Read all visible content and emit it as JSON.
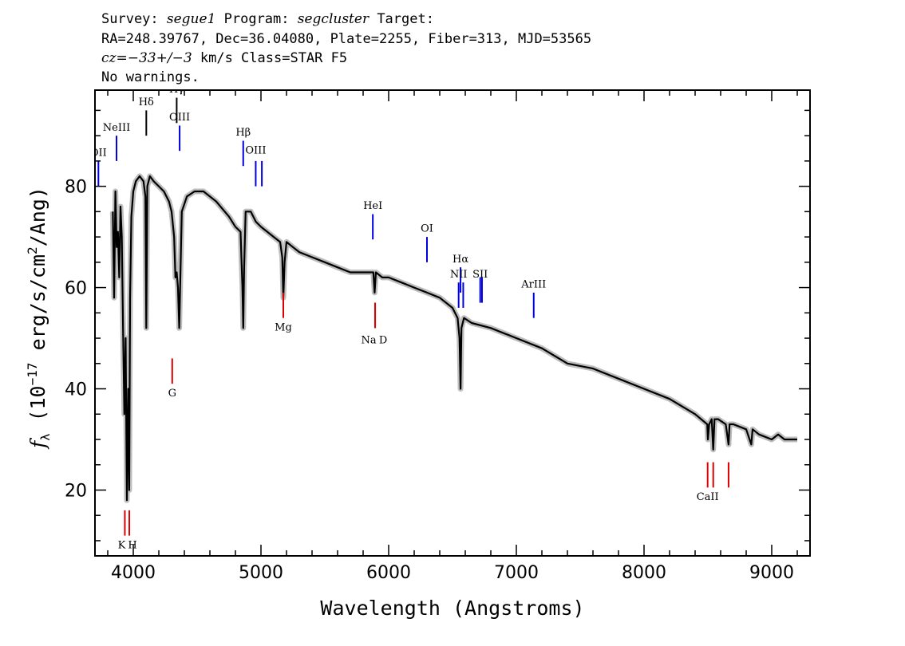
{
  "header": {
    "line1_prefix": "Survey: ",
    "survey": "segue1",
    "line1_mid": " Program: ",
    "program": "segcluster",
    "line1_suffix": " Target:",
    "line2": "RA=248.39767, Dec=36.04080, Plate=2255, Fiber=313, MJD=53565",
    "line3_cz": "cz=−33+/−3",
    "line3_rest": " km/s Class=STAR F5",
    "line4": "No warnings."
  },
  "chart_data": {
    "type": "line",
    "xlabel": "Wavelength (Angstroms)",
    "ylabel": "fλ (10⁻¹⁷ erg/s/cm²/Ang)",
    "ylabel_main": "f",
    "ylabel_sub": "λ",
    "ylabel_rest_a": " (10",
    "ylabel_exp1": "−17",
    "ylabel_rest_b": " erg/s/cm",
    "ylabel_exp2": "2",
    "ylabel_rest_c": "/Ang)",
    "xlim": [
      3700,
      9300
    ],
    "ylim": [
      7,
      99
    ],
    "xticks": [
      4000,
      5000,
      6000,
      7000,
      8000,
      9000
    ],
    "yticks": [
      20,
      40,
      60,
      80
    ],
    "grid": false,
    "series": [
      {
        "color": "#000000",
        "x": [
          3840,
          3850,
          3860,
          3870,
          3880,
          3890,
          3900,
          3910,
          3920,
          3930,
          3940,
          3950,
          3960,
          3968,
          3975,
          3985,
          4000,
          4020,
          4050,
          4080,
          4095,
          4102,
          4110,
          4130,
          4160,
          4200,
          4240,
          4280,
          4300,
          4320,
          4330,
          4340,
          4350,
          4360,
          4380,
          4420,
          4480,
          4550,
          4650,
          4750,
          4800,
          4840,
          4855,
          4861,
          4868,
          4880,
          4920,
          4960,
          5000,
          5050,
          5100,
          5150,
          5167,
          5175,
          5185,
          5200,
          5250,
          5300,
          5400,
          5500,
          5600,
          5700,
          5800,
          5880,
          5890,
          5900,
          5950,
          6000,
          6100,
          6200,
          6300,
          6400,
          6500,
          6540,
          6555,
          6563,
          6570,
          6590,
          6650,
          6800,
          7000,
          7200,
          7400,
          7600,
          7800,
          8000,
          8200,
          8400,
          8495,
          8500,
          8510,
          8530,
          8542,
          8552,
          8580,
          8640,
          8662,
          8670,
          8700,
          8800,
          8840,
          8850,
          8900,
          9000,
          9050,
          9100,
          9200
        ],
        "values": [
          75,
          58,
          79,
          68,
          71,
          62,
          76,
          70,
          52,
          35,
          50,
          18,
          40,
          20,
          58,
          74,
          79,
          81,
          82,
          81,
          78,
          52,
          80,
          82,
          81,
          80,
          79,
          77,
          75,
          70,
          62,
          63,
          60,
          52,
          75,
          78,
          79,
          79,
          77,
          74,
          72,
          71,
          60,
          52,
          64,
          75,
          75,
          73,
          72,
          71,
          70,
          69,
          66,
          58,
          65,
          69,
          68,
          67,
          66,
          65,
          64,
          63,
          63,
          63,
          59,
          63,
          62,
          62,
          61,
          60,
          59,
          58,
          56,
          54,
          50,
          40,
          52,
          54,
          53,
          52,
          50,
          48,
          45,
          44,
          42,
          40,
          38,
          35,
          33,
          30,
          33,
          34,
          28,
          34,
          34,
          33,
          29,
          33,
          33,
          32,
          29,
          32,
          31,
          30,
          31,
          30,
          30
        ]
      }
    ],
    "annotations": [
      {
        "label": "OII",
        "wavelength": 3727,
        "color": "#0000dd",
        "side": "top",
        "y1": 80,
        "y2": 85,
        "text_y": 86
      },
      {
        "label": "NeIII",
        "wavelength": 3869,
        "color": "#0000dd",
        "side": "top",
        "y1": 85,
        "y2": 90,
        "text_y": 91
      },
      {
        "label": "Hδ",
        "wavelength": 4102,
        "color": "#000000",
        "side": "top",
        "y1": 90,
        "y2": 95,
        "text_y": 96
      },
      {
        "label": "Hγ",
        "wavelength": 4340,
        "color": "#000000",
        "side": "top",
        "y1": 92.5,
        "y2": 97.5,
        "text_y": 98.5
      },
      {
        "label": "OIII",
        "wavelength": 4363,
        "color": "#0000dd",
        "side": "top",
        "y1": 87,
        "y2": 92,
        "text_y": 93
      },
      {
        "label": "Hβ",
        "wavelength": 4861,
        "color": "#0000dd",
        "side": "top",
        "y1": 84,
        "y2": 89,
        "text_y": 90
      },
      {
        "label": "OIII",
        "wavelength": 4959,
        "color": "#0000dd",
        "side": "top",
        "y1": 80,
        "y2": 85,
        "text_y": 86.5
      },
      {
        "label": "OIII",
        "wavelength": 5007,
        "color": "#0000dd",
        "side": "top",
        "y1": 80,
        "y2": 85,
        "text_y": null
      },
      {
        "label": "HeI",
        "wavelength": 5876,
        "color": "#0000dd",
        "side": "top",
        "y1": 69.5,
        "y2": 74.5,
        "text_y": 75.5
      },
      {
        "label": "OI",
        "wavelength": 6300,
        "color": "#0000dd",
        "side": "top",
        "y1": 65,
        "y2": 70,
        "text_y": 71
      },
      {
        "label": "NII",
        "wavelength": 6548,
        "color": "#0000dd",
        "side": "top",
        "y1": 56,
        "y2": 61,
        "text_y": 62
      },
      {
        "label": "Hα",
        "wavelength": 6563,
        "color": "#0000dd",
        "side": "top",
        "y1": 59,
        "y2": 64,
        "text_y": 65
      },
      {
        "label": "NII",
        "wavelength": 6584,
        "color": "#0000dd",
        "side": "top",
        "y1": 56,
        "y2": 61,
        "text_y": null
      },
      {
        "label": "SII",
        "wavelength": 6717,
        "color": "#0000dd",
        "side": "top",
        "y1": 57,
        "y2": 62,
        "text_y": 62
      },
      {
        "label": "SII",
        "wavelength": 6731,
        "color": "#0000dd",
        "side": "top",
        "y1": 57,
        "y2": 62,
        "text_y": null
      },
      {
        "label": "ArIII",
        "wavelength": 7136,
        "color": "#0000dd",
        "side": "top",
        "y1": 54,
        "y2": 59,
        "text_y": 60
      },
      {
        "label": "K",
        "wavelength": 3934,
        "color": "#dd0000",
        "side": "bottom",
        "y1": 11,
        "y2": 16,
        "text_y": 8.5
      },
      {
        "label": "H",
        "wavelength": 3969,
        "color": "#dd0000",
        "side": "bottom",
        "y1": 11,
        "y2": 16,
        "text_y": 8.5
      },
      {
        "label": "G",
        "wavelength": 4305,
        "color": "#dd0000",
        "side": "bottom",
        "y1": 41,
        "y2": 46,
        "text_y": 38.5
      },
      {
        "label": "Mg",
        "wavelength": 5175,
        "color": "#dd0000",
        "side": "bottom",
        "y1": 54,
        "y2": 59,
        "text_y": 51.5
      },
      {
        "label": "Na",
        "wavelength": 5894,
        "color": "#dd0000",
        "side": "bottom",
        "y1": 52,
        "y2": 57,
        "text_y": 49
      },
      {
        "label": "D",
        "wavelength": 5894,
        "color": "#dd0000",
        "side": "bottom",
        "y1": 52,
        "y2": 57,
        "text_y": 49
      },
      {
        "label": "CaII",
        "wavelength": 8498,
        "color": "#dd0000",
        "side": "bottom",
        "y1": 20.5,
        "y2": 25.5,
        "text_y": 18
      },
      {
        "label": "CaII",
        "wavelength": 8542,
        "color": "#dd0000",
        "side": "bottom",
        "y1": 20.5,
        "y2": 25.5,
        "text_y": null
      },
      {
        "label": "CaII",
        "wavelength": 8662,
        "color": "#dd0000",
        "side": "bottom",
        "y1": 20.5,
        "y2": 25.5,
        "text_y": null
      }
    ]
  }
}
